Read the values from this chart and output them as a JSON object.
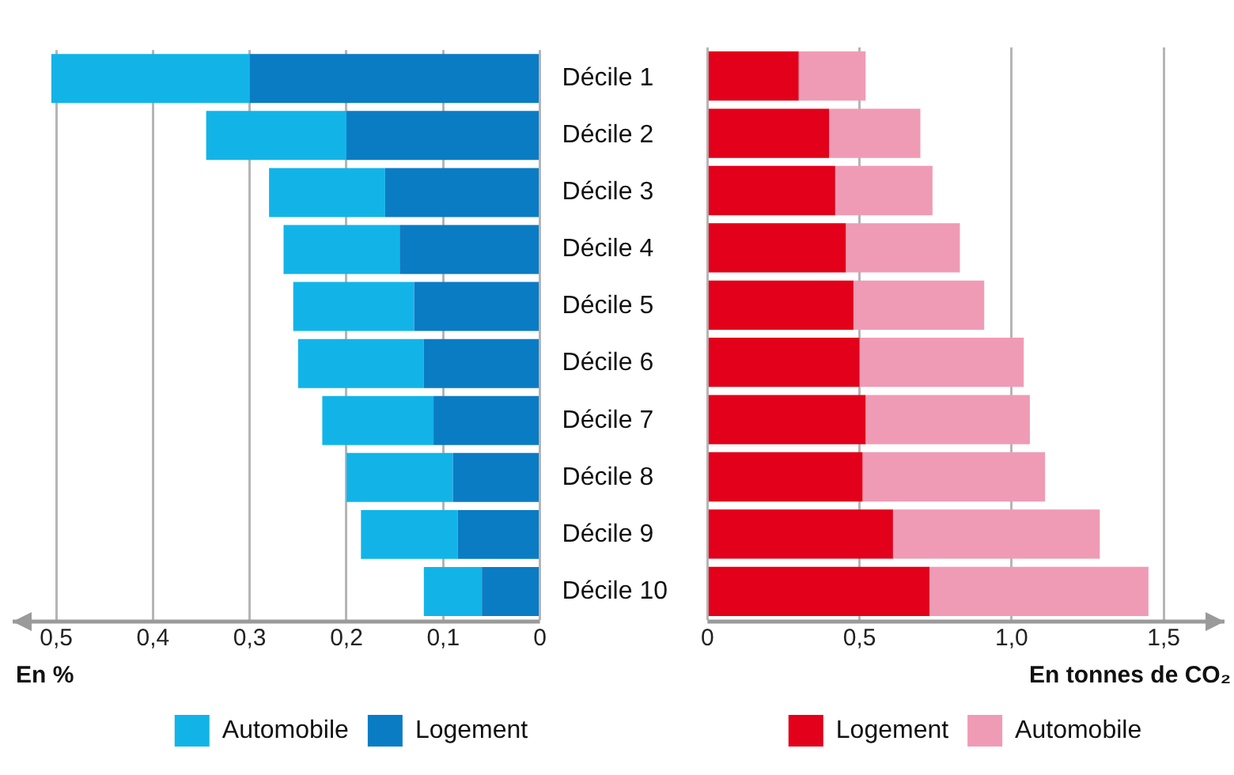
{
  "chart_data": [
    {
      "type": "bar",
      "orientation": "horizontal",
      "stacked": true,
      "xlabel": "En %",
      "categories": [
        "Décile 1",
        "Décile 2",
        "Décile 3",
        "Décile 4",
        "Décile 5",
        "Décile 6",
        "Décile 7",
        "Décile 8",
        "Décile 9",
        "Décile 10"
      ],
      "series": [
        {
          "name": "Logement",
          "color": "#0a7cc4",
          "values": [
            0.3,
            0.2,
            0.16,
            0.145,
            0.13,
            0.12,
            0.11,
            0.09,
            0.085,
            0.06
          ]
        },
        {
          "name": "Automobile",
          "color": "#12b4e8",
          "values": [
            0.205,
            0.145,
            0.12,
            0.12,
            0.125,
            0.13,
            0.115,
            0.11,
            0.1,
            0.06
          ]
        }
      ],
      "xlim": [
        0.545,
        0
      ],
      "xticks": [
        {
          "value": 0.5,
          "label": "0,5"
        },
        {
          "value": 0.4,
          "label": "0,4"
        },
        {
          "value": 0.3,
          "label": "0,3"
        },
        {
          "value": 0.2,
          "label": "0,2"
        },
        {
          "value": 0.1,
          "label": "0,1"
        },
        0
      ],
      "grid": "x",
      "legend": "bottom"
    },
    {
      "type": "bar",
      "orientation": "horizontal",
      "stacked": true,
      "xlabel": "En tonnes de CO₂",
      "categories": [
        null,
        null,
        null,
        null,
        null,
        null,
        null,
        null,
        null,
        null
      ],
      "series": [
        {
          "name": "Logement",
          "color": "#e2001a",
          "values": [
            0.3,
            0.4,
            0.42,
            0.455,
            0.48,
            0.5,
            0.52,
            0.51,
            0.61,
            0.73
          ]
        },
        {
          "name": "Automobile",
          "color": "#f09bb5",
          "values": [
            0.22,
            0.3,
            0.32,
            0.375,
            0.43,
            0.54,
            0.54,
            0.6,
            0.68,
            0.72
          ]
        }
      ],
      "xlim": [
        0,
        1.7
      ],
      "xticks": [
        0,
        {
          "value": 0.5,
          "label": "0,5"
        },
        {
          "value": 1.0,
          "label": "1,0"
        },
        {
          "value": 1.5,
          "label": "1,5"
        }
      ],
      "grid": "x",
      "legend": "bottom",
      "tick_labels": "x"
    }
  ]
}
